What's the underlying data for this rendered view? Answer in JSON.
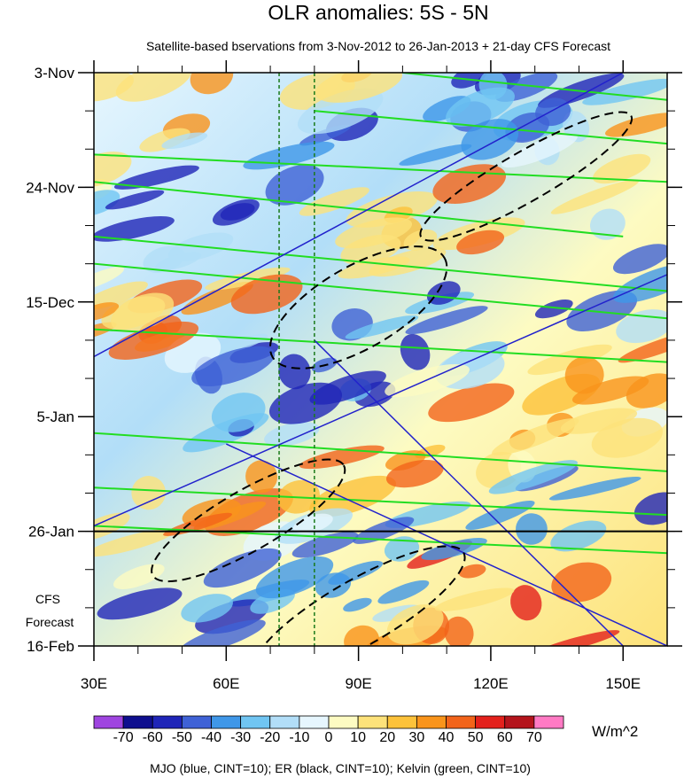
{
  "chart_data": {
    "type": "heatmap",
    "title": "OLR anomalies: 5S - 5N",
    "subtitle": "Satellite-based bservations from 3-Nov-2012 to 26-Jan-2013 + 21-day CFS Forecast",
    "x_ticks": [
      {
        "value": 30,
        "label": "30E"
      },
      {
        "value": 60,
        "label": "60E"
      },
      {
        "value": 90,
        "label": "90E"
      },
      {
        "value": 120,
        "label": "120E"
      },
      {
        "value": 150,
        "label": "150E"
      }
    ],
    "xlim": [
      30,
      160
    ],
    "y_ticks": [
      {
        "value": "2012-11-03",
        "label": "3-Nov"
      },
      {
        "value": "2012-11-24",
        "label": "24-Nov"
      },
      {
        "value": "2012-12-15",
        "label": "15-Dec"
      },
      {
        "value": "2013-01-05",
        "label": "5-Jan"
      },
      {
        "value": "2013-01-26",
        "label": "26-Jan"
      },
      {
        "value": "2013-02-16",
        "label": "16-Feb"
      }
    ],
    "ylim": [
      "2012-11-03",
      "2013-02-16"
    ],
    "forecast_start": "2013-01-26",
    "forecast_label": [
      "CFS",
      "Forecast"
    ],
    "reference_lines_lon": [
      72,
      80
    ],
    "units": "W/m^2",
    "colorbar": {
      "labels": [
        "-70",
        "-60",
        "-50",
        "-40",
        "-30",
        "-20",
        "-10",
        "0",
        "10",
        "20",
        "30",
        "40",
        "50",
        "60",
        "70"
      ],
      "colors": [
        "#9f45e0",
        "#0f0f8e",
        "#1f25b8",
        "#3f62d6",
        "#3f97e8",
        "#70c5f2",
        "#b2def8",
        "#e6f6fe",
        "#fdfbc2",
        "#fde27a",
        "#fcc23a",
        "#f9941b",
        "#f2641a",
        "#e3211c",
        "#b4141c",
        "#ff7ac4"
      ]
    },
    "features": [
      {
        "name": "Kelvin",
        "color": "#22dd22",
        "lines": [
          {
            "from": [
              "2012-11-18",
              30
            ],
            "to": [
              "2012-11-23",
              160
            ]
          },
          {
            "from": [
              "2012-11-23",
              30
            ],
            "to": [
              "2012-12-03",
              150
            ]
          },
          {
            "from": [
              "2012-12-03",
              30
            ],
            "to": [
              "2012-12-13",
              160
            ]
          },
          {
            "from": [
              "2012-12-08",
              30
            ],
            "to": [
              "2012-12-18",
              160
            ]
          },
          {
            "from": [
              "2012-12-20",
              30
            ],
            "to": [
              "2012-12-26",
              160
            ]
          },
          {
            "from": [
              "2013-01-08",
              30
            ],
            "to": [
              "2013-01-15",
              160
            ]
          },
          {
            "from": [
              "2013-01-18",
              30
            ],
            "to": [
              "2013-01-23",
              160
            ]
          },
          {
            "from": [
              "2013-01-25",
              30
            ],
            "to": [
              "2013-01-30",
              160
            ]
          },
          {
            "from": [
              "2012-11-03",
              100
            ],
            "to": [
              "2012-11-08",
              160
            ]
          },
          {
            "from": [
              "2012-11-10",
              80
            ],
            "to": [
              "2012-11-16",
              160
            ]
          }
        ]
      },
      {
        "name": "MJO",
        "color": "#2222cc",
        "lines": [
          {
            "from": [
              "2012-12-25",
              30
            ],
            "to": [
              "2012-11-03",
              150
            ]
          },
          {
            "from": [
              "2013-01-25",
              30
            ],
            "to": [
              "2012-12-10",
              160
            ]
          },
          {
            "from": [
              "2013-01-10",
              60
            ],
            "to": [
              "2013-02-16",
              160
            ]
          },
          {
            "from": [
              "2012-12-22",
              80
            ],
            "to": [
              "2013-02-16",
              150
            ]
          }
        ]
      },
      {
        "name": "ER",
        "color": "#000000",
        "ellipses": [
          {
            "center": [
              "2012-12-16",
              90
            ],
            "lon_span": 45,
            "days_span": 30
          },
          {
            "center": [
              "2013-01-24",
              65
            ],
            "lon_span": 50,
            "days_span": 22
          },
          {
            "center": [
              "2013-02-10",
              90
            ],
            "lon_span": 55,
            "days_span": 24
          },
          {
            "center": [
              "2012-11-22",
              128
            ],
            "lon_span": 55,
            "days_span": 18
          }
        ]
      }
    ]
  },
  "footer": "MJO (blue, CINT=10); ER (black, CINT=10); Kelvin (green, CINT=10)"
}
